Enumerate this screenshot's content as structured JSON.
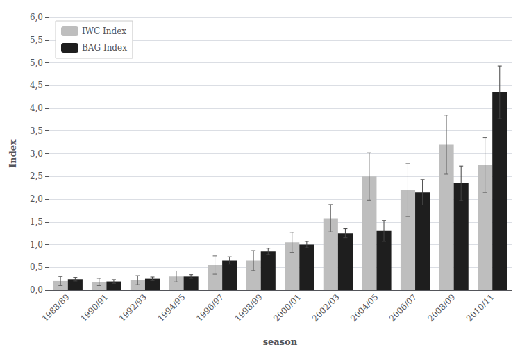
{
  "chart_data": {
    "type": "bar",
    "xlabel": "season",
    "ylabel": "Index",
    "categories": [
      "1988/89",
      "1990/91",
      "1992/93",
      "1994/95",
      "1996/97",
      "1998/99",
      "2000/01",
      "2002/03",
      "2004/05",
      "2006/07",
      "2008/09",
      "2010/11"
    ],
    "series": [
      {
        "name": "IWC Index",
        "color": "#bebebe",
        "values": [
          0.2,
          0.18,
          0.22,
          0.3,
          0.55,
          0.65,
          1.05,
          1.58,
          2.5,
          2.2,
          3.2,
          2.75
        ],
        "errors": [
          0.1,
          0.08,
          0.1,
          0.12,
          0.2,
          0.22,
          0.22,
          0.3,
          0.52,
          0.58,
          0.65,
          0.6
        ]
      },
      {
        "name": "BAG Index",
        "color": "#1e1e1e",
        "values": [
          0.24,
          0.19,
          0.25,
          0.3,
          0.65,
          0.85,
          1.0,
          1.25,
          1.3,
          2.15,
          2.35,
          4.35
        ],
        "errors": [
          0.04,
          0.04,
          0.04,
          0.04,
          0.08,
          0.07,
          0.07,
          0.1,
          0.23,
          0.28,
          0.38,
          0.58
        ]
      }
    ],
    "ylim": [
      0,
      6.0
    ],
    "yticks": [
      {
        "value": 0.0,
        "label": "0,0"
      },
      {
        "value": 0.5,
        "label": "0,5"
      },
      {
        "value": 1.0,
        "label": "1,0"
      },
      {
        "value": 1.5,
        "label": "1,5"
      },
      {
        "value": 2.0,
        "label": "2,0"
      },
      {
        "value": 2.5,
        "label": "2,5"
      },
      {
        "value": 3.0,
        "label": "3,0"
      },
      {
        "value": 3.5,
        "label": "3,5"
      },
      {
        "value": 4.0,
        "label": "4,0"
      },
      {
        "value": 4.5,
        "label": "4,5"
      },
      {
        "value": 5.0,
        "label": "5,0"
      },
      {
        "value": 5.5,
        "label": "5,5"
      },
      {
        "value": 6.0,
        "label": "6,0"
      }
    ],
    "grid": true,
    "legend": "upper left"
  }
}
